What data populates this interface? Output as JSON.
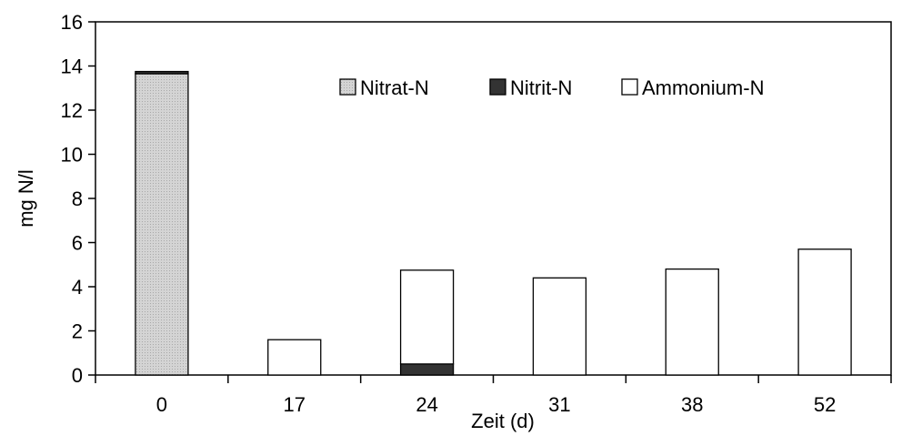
{
  "chart_data": {
    "type": "bar",
    "stacked": true,
    "xlabel": "Zeit (d)",
    "ylabel": "mg N/l",
    "ylim": [
      0,
      16
    ],
    "yticks": [
      0,
      2,
      4,
      6,
      8,
      10,
      12,
      14,
      16
    ],
    "categories": [
      "0",
      "17",
      "24",
      "31",
      "38",
      "52"
    ],
    "series": [
      {
        "name": "Nitrat-N",
        "color": "#d9d9d9",
        "values": [
          13.65,
          0,
          0,
          0,
          0,
          0
        ]
      },
      {
        "name": "Nitrit-N",
        "color": "#333333",
        "values": [
          0.1,
          0,
          0.5,
          0,
          0,
          0
        ]
      },
      {
        "name": "Ammonium-N",
        "color": "#ffffff",
        "values": [
          0,
          1.6,
          4.25,
          4.4,
          4.8,
          5.7
        ]
      }
    ],
    "legend_position": "top-right",
    "grid": false
  }
}
